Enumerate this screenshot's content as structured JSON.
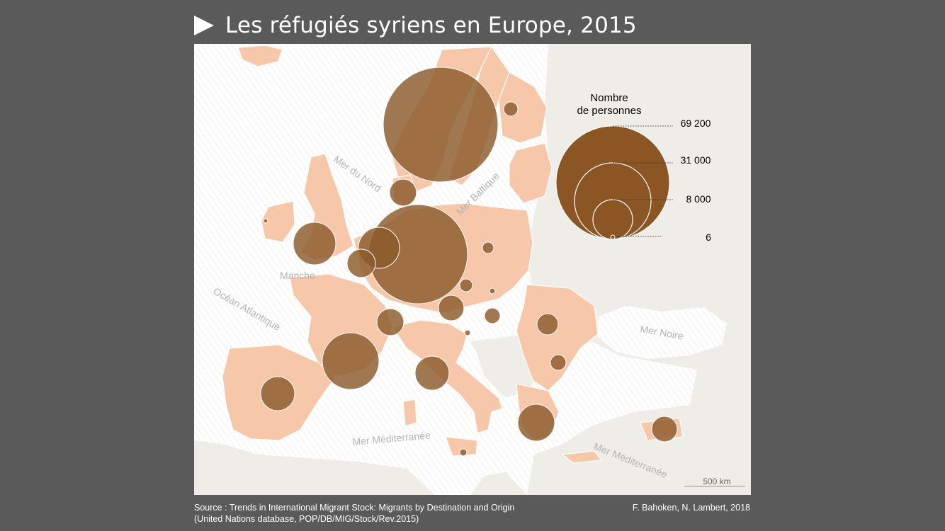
{
  "title": "Les réfugiés syriens en Europe, 2015",
  "legend": {
    "title_line1": "Nombre",
    "title_line2": "de personnes",
    "values": [
      "69 200",
      "31 000",
      "8 000",
      "6"
    ]
  },
  "sea_labels": {
    "mer_du_nord": "Mer du Nord",
    "mer_baltique": "Mer Baltique",
    "manche": "Manche",
    "ocean_atlantique": "Océan Atlantique",
    "mer_noire": "Mer Noire",
    "mer_mediterranee_1": "Mer Méditerranée",
    "mer_mediterranee_2": "Mer Méditerranée"
  },
  "scale_label": "500 km",
  "source_line1": "Source : Trends in International Migrant Stock: Migrants by Destination and Origin",
  "source_line2": "(United Nations database, POP/DB/MIG/Stock/Rev.2015)",
  "credits": "F. Bahoken, N. Lambert, 2018",
  "colors": {
    "background": "#5a5a5a",
    "land_data": "#f6c7a9",
    "land_other": "#efede7",
    "sea": "#ffffff",
    "circle": "#8b5a2b",
    "legend_circle": "#8c5524"
  }
}
